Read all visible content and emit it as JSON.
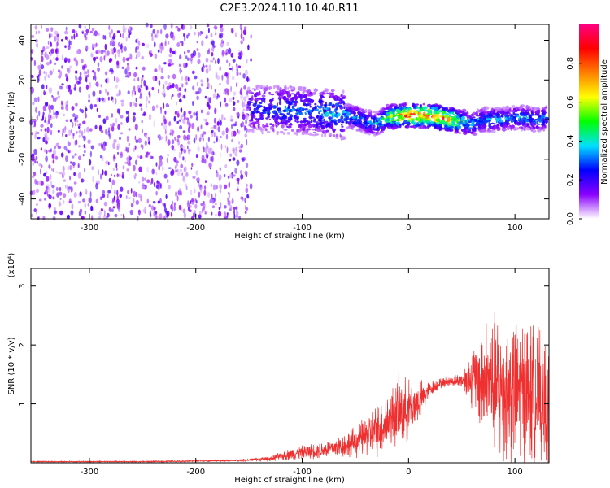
{
  "chart_data": [
    {
      "type": "heatmap",
      "title": "C2E3.2024.110.10.40.R11",
      "xlabel": "Height of straight line (km)",
      "ylabel": "Frequency (Hz)",
      "xlim": [
        -355,
        132
      ],
      "ylim": [
        -50,
        48
      ],
      "xticks": [
        -300,
        -200,
        -100,
        0,
        100
      ],
      "yticks": [
        -40,
        -20,
        0,
        20,
        40
      ],
      "colorbar": {
        "label": "Normalized spectral amplitude",
        "ticks": [
          "0.0",
          "0.2",
          "0.4",
          "0.6",
          "0.8"
        ],
        "range": [
          0,
          1
        ],
        "colors": [
          "#ffffff",
          "#8a00ff",
          "#0000ff",
          "#00e0ff",
          "#00ff00",
          "#ffff00",
          "#ff8000",
          "#ff0000",
          "#ff0080"
        ]
      },
      "noise_region": {
        "x_range": [
          -355,
          -148
        ],
        "freq_range": [
          -50,
          48
        ],
        "amplitude": 0.1
      },
      "ridge": {
        "x": [
          -150,
          -130,
          -110,
          -90,
          -70,
          -50,
          -40,
          -30,
          -20,
          -10,
          0,
          10,
          20,
          30,
          40,
          50,
          60,
          70,
          80,
          90,
          100,
          110,
          120,
          130
        ],
        "freq": [
          6,
          5,
          5,
          4,
          3,
          1,
          -1,
          -2,
          1,
          2,
          2,
          2,
          2,
          1,
          0,
          -1,
          -2,
          0,
          0,
          0,
          1,
          1,
          0,
          1
        ],
        "amplitude": [
          0.3,
          0.3,
          0.35,
          0.35,
          0.4,
          0.4,
          0.35,
          0.4,
          0.6,
          0.8,
          0.85,
          0.9,
          0.9,
          0.85,
          0.8,
          0.5,
          0.4,
          0.35,
          0.4,
          0.35,
          0.35,
          0.4,
          0.35,
          0.35
        ]
      }
    },
    {
      "type": "line",
      "title": "",
      "xlabel": "Height of straight line (km)",
      "ylabel": "SNR (10 * v/v)",
      "scale_label": "(x10⁴)",
      "xlim": [
        -355,
        132
      ],
      "ylim": [
        0,
        3.3
      ],
      "xticks": [
        -300,
        -200,
        -100,
        0,
        100
      ],
      "yticks": [
        1,
        2,
        3
      ],
      "series": [
        {
          "color": "#ee3030",
          "x": [
            -355,
            -300,
            -250,
            -200,
            -160,
            -130,
            -110,
            -90,
            -70,
            -50,
            -40,
            -30,
            -20,
            -10,
            0,
            10,
            20,
            30,
            40,
            50,
            60,
            70,
            80,
            90,
            100,
            110,
            120,
            130
          ],
          "y": [
            0.02,
            0.02,
            0.02,
            0.03,
            0.04,
            0.07,
            0.15,
            0.2,
            0.25,
            0.35,
            0.45,
            0.55,
            0.7,
            0.85,
            0.9,
            1.05,
            1.25,
            1.35,
            1.38,
            1.4,
            1.45,
            1.4,
            1.3,
            1.2,
            1.25,
            1.2,
            1.1,
            0.95
          ],
          "noise_amplitude": [
            0.01,
            0.01,
            0.01,
            0.015,
            0.02,
            0.05,
            0.12,
            0.15,
            0.2,
            0.3,
            0.4,
            0.5,
            0.6,
            0.7,
            0.6,
            0.4,
            0.15,
            0.1,
            0.1,
            0.15,
            0.6,
            1.2,
            1.4,
            1.5,
            1.6,
            1.5,
            1.4,
            1.3
          ]
        }
      ]
    }
  ]
}
